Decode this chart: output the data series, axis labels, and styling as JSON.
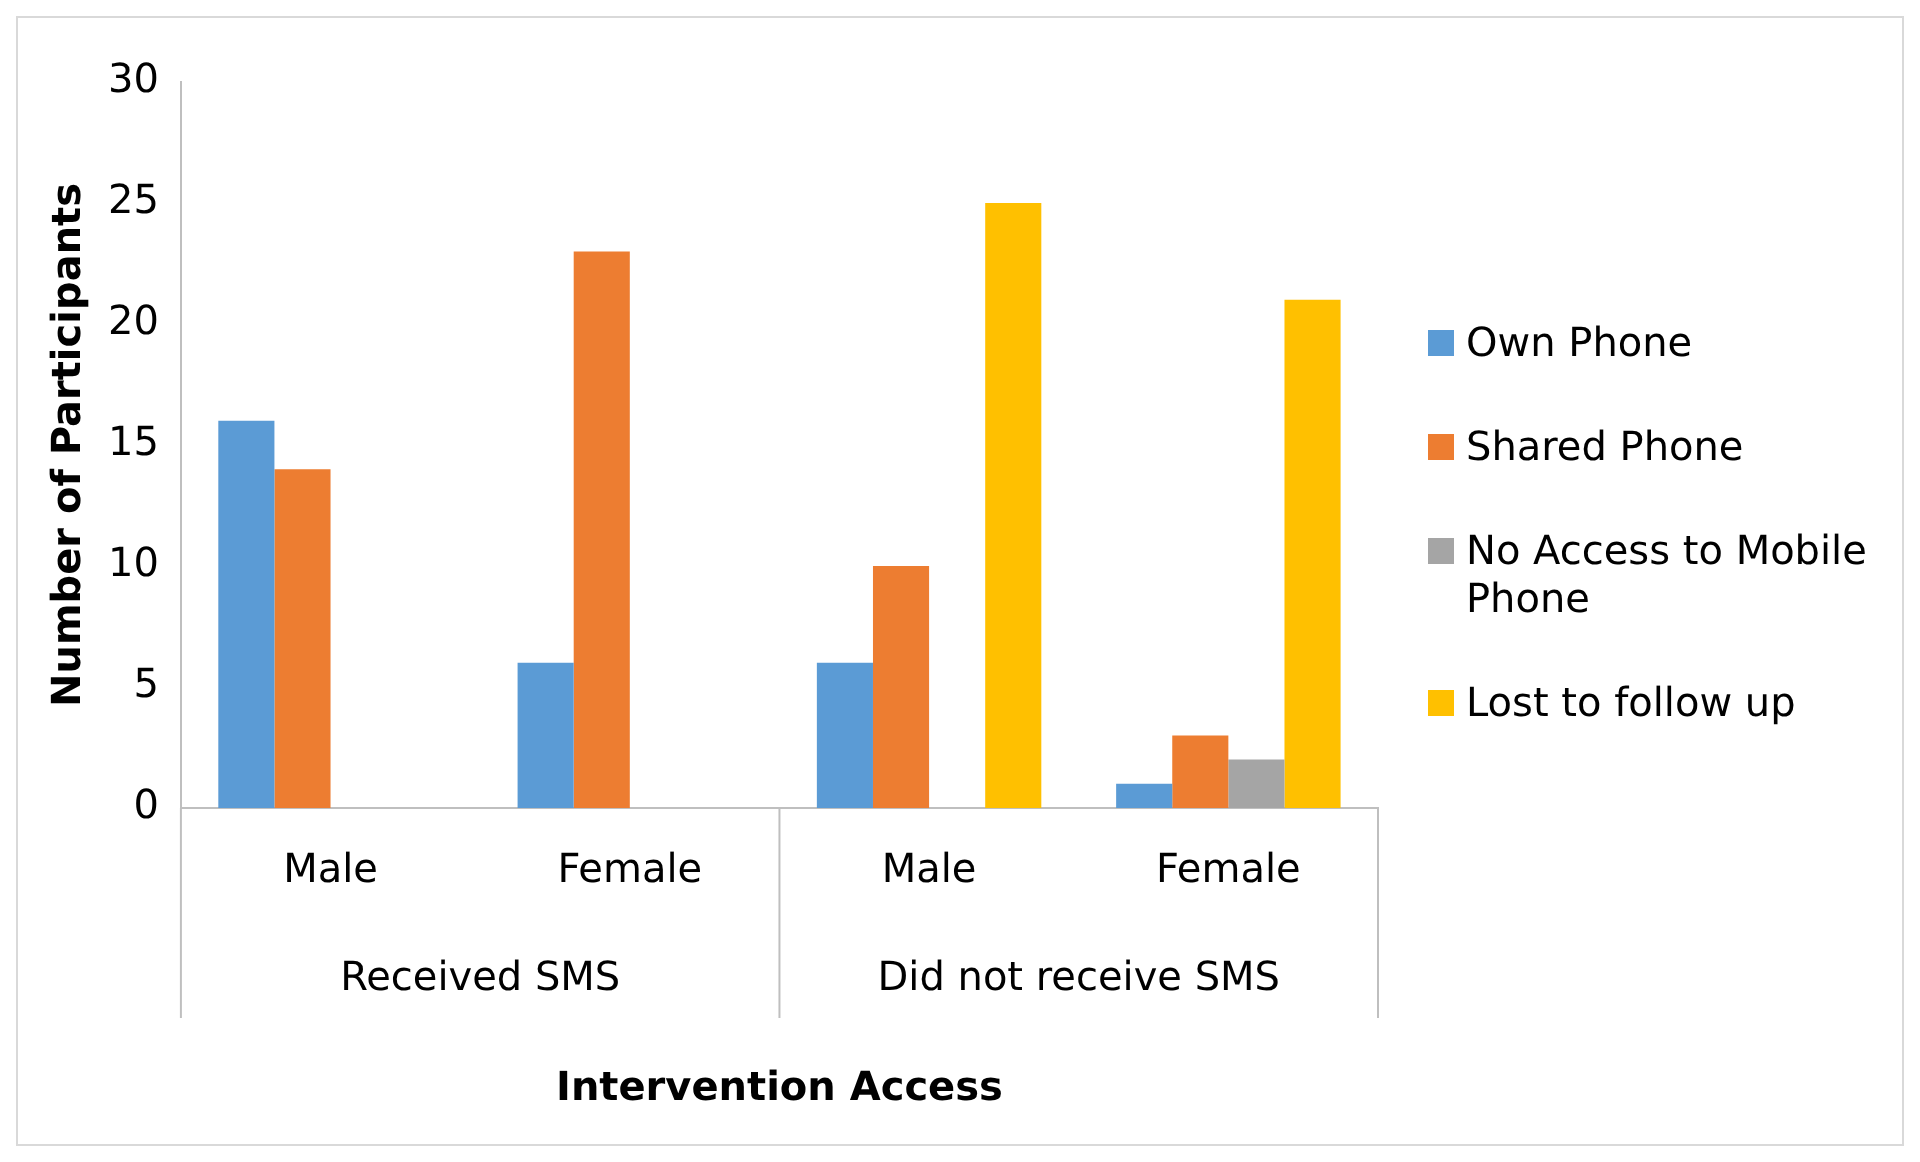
{
  "chart_data": {
    "type": "bar",
    "xlabel": "Intervention Access",
    "ylabel": "Number of Participants",
    "categories": [
      "Male",
      "Female",
      "Male",
      "Female"
    ],
    "annotations": [
      "Received SMS",
      "Did not receive SMS"
    ],
    "series": [
      {
        "name": "Own Phone",
        "color": "#5b9bd5",
        "values": [
          16,
          6,
          6,
          1
        ]
      },
      {
        "name": "Shared Phone",
        "color": "#ed7d31",
        "values": [
          14,
          23,
          10,
          3
        ]
      },
      {
        "name": "No Access to Mobile Phone",
        "color": "#a5a5a5",
        "values": [
          0,
          0,
          0,
          2
        ]
      },
      {
        "name": "Lost to follow up",
        "color": "#ffc000",
        "values": [
          0,
          0,
          25,
          21
        ]
      }
    ],
    "ylim": [
      0,
      30
    ],
    "yticks": [
      0,
      5,
      10,
      15,
      20,
      25,
      30
    ],
    "grid": false,
    "legend": "right"
  }
}
